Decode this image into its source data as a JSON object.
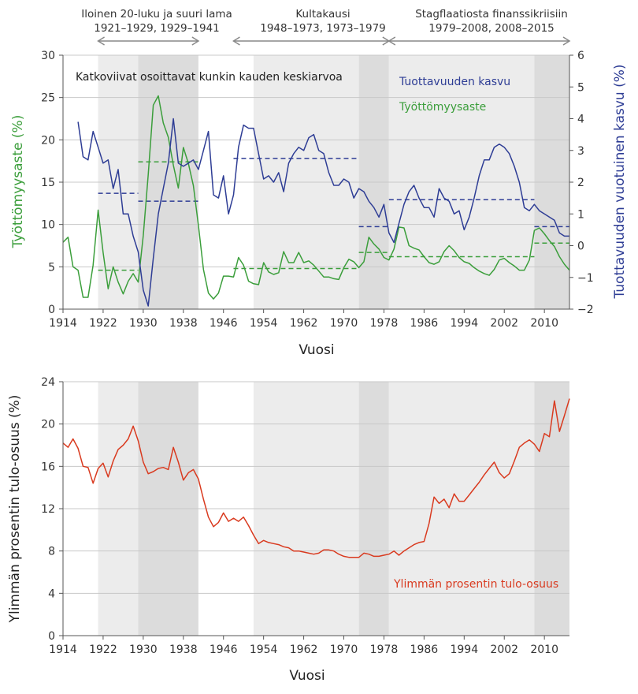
{
  "colors": {
    "unemployment": "#3b9e3b",
    "productivity": "#2e3d95",
    "top_income": "#d93a1f",
    "period_light": "#ececec",
    "period_dark": "#dcdcdc",
    "grid": "#c8c8c8",
    "arrow": "#888888"
  },
  "periods": [
    {
      "title": "Iloinen 20-luku ja suuri lama",
      "years": "1921–1929, 1929–1941",
      "from": 1921,
      "to": 1941,
      "bands": [
        {
          "from": 1921,
          "to": 1929,
          "shade": "light"
        },
        {
          "from": 1929,
          "to": 1941,
          "shade": "dark"
        }
      ]
    },
    {
      "title": "Kultakausi",
      "years": "1948–1973, 1973–1979",
      "from": 1948,
      "to": 1979,
      "bands": [
        {
          "from": 1952,
          "to": 1973,
          "shade": "light"
        },
        {
          "from": 1973,
          "to": 1979,
          "shade": "dark"
        }
      ]
    },
    {
      "title": "Stagflaatiosta finanssikriisiin",
      "years": "1979–2008, 2008–2015",
      "from": 1979,
      "to": 2015,
      "bands": [
        {
          "from": 1979,
          "to": 2008,
          "shade": "light"
        },
        {
          "from": 2008,
          "to": 2015,
          "shade": "dark"
        }
      ]
    }
  ],
  "chart_data": [
    {
      "type": "line",
      "note": "Katkoviivat osoittavat kunkin kauden keskiarvoa",
      "xlabel": "Vuosi",
      "xlim": [
        1914,
        2015
      ],
      "xticks": [
        1914,
        1922,
        1930,
        1938,
        1946,
        1954,
        1962,
        1970,
        1978,
        1986,
        1994,
        2002,
        2010
      ],
      "ylabel_left": "Työttömyysaste (%)",
      "ylim_left": [
        0,
        30
      ],
      "yticks_left": [
        0,
        5,
        10,
        15,
        20,
        25,
        30
      ],
      "ylabel_right": "Tuottavuuden vuotuinen kasvu (%)",
      "ylim_right": [
        -2,
        6
      ],
      "yticks_right": [
        -2,
        -1,
        0,
        1,
        2,
        3,
        4,
        5,
        6
      ],
      "grid": true,
      "series": [
        {
          "name": "Työttömyysaste",
          "axis": "left",
          "color_key": "unemployment",
          "x": [
            1914,
            1915,
            1916,
            1917,
            1918,
            1919,
            1920,
            1921,
            1922,
            1923,
            1924,
            1925,
            1926,
            1927,
            1928,
            1929,
            1930,
            1931,
            1932,
            1933,
            1934,
            1935,
            1936,
            1937,
            1938,
            1939,
            1940,
            1941,
            1942,
            1943,
            1944,
            1945,
            1946,
            1947,
            1948,
            1949,
            1950,
            1951,
            1952,
            1953,
            1954,
            1955,
            1956,
            1957,
            1958,
            1959,
            1960,
            1961,
            1962,
            1963,
            1964,
            1965,
            1966,
            1967,
            1968,
            1969,
            1970,
            1971,
            1972,
            1973,
            1974,
            1975,
            1976,
            1977,
            1978,
            1979,
            1980,
            1981,
            1982,
            1983,
            1984,
            1985,
            1986,
            1987,
            1988,
            1989,
            1990,
            1991,
            1992,
            1993,
            1994,
            1995,
            1996,
            1997,
            1998,
            1999,
            2000,
            2001,
            2002,
            2003,
            2004,
            2005,
            2006,
            2007,
            2008,
            2009,
            2010,
            2011,
            2012,
            2013,
            2014,
            2015
          ],
          "y": [
            7.9,
            8.5,
            5.0,
            4.6,
            1.4,
            1.4,
            5.2,
            11.7,
            6.7,
            2.4,
            5.0,
            3.2,
            1.8,
            3.3,
            4.2,
            3.2,
            8.7,
            15.9,
            24.1,
            25.2,
            22.0,
            20.3,
            17.0,
            14.3,
            19.1,
            17.2,
            14.6,
            9.9,
            4.7,
            1.9,
            1.2,
            1.9,
            3.9,
            3.9,
            3.8,
            6.1,
            5.2,
            3.3,
            3.0,
            2.9,
            5.5,
            4.4,
            4.1,
            4.3,
            6.8,
            5.5,
            5.5,
            6.7,
            5.5,
            5.7,
            5.2,
            4.5,
            3.8,
            3.8,
            3.6,
            3.5,
            4.9,
            5.9,
            5.6,
            4.9,
            5.6,
            8.5,
            7.7,
            7.1,
            6.1,
            5.8,
            7.1,
            9.7,
            9.6,
            7.5,
            7.2,
            7.0,
            6.2,
            5.5,
            5.3,
            5.6,
            6.8,
            7.5,
            6.9,
            6.1,
            5.6,
            5.4,
            4.9,
            4.5,
            4.2,
            4.0,
            4.7,
            5.8,
            6.0,
            5.5,
            5.1,
            4.6,
            4.6,
            5.8,
            9.3,
            9.6,
            8.9,
            8.1,
            7.4,
            6.2,
            5.3,
            4.6
          ]
        },
        {
          "name": "Tuottavuuden kasvu",
          "axis": "right",
          "color_key": "productivity",
          "x": [
            1917,
            1918,
            1919,
            1920,
            1921,
            1922,
            1923,
            1924,
            1925,
            1926,
            1927,
            1928,
            1929,
            1930,
            1931,
            1932,
            1933,
            1934,
            1935,
            1936,
            1937,
            1938,
            1939,
            1940,
            1941,
            1942,
            1943,
            1944,
            1945,
            1946,
            1947,
            1948,
            1949,
            1950,
            1951,
            1952,
            1953,
            1954,
            1955,
            1956,
            1957,
            1958,
            1959,
            1960,
            1961,
            1962,
            1963,
            1964,
            1965,
            1966,
            1967,
            1968,
            1969,
            1970,
            1971,
            1972,
            1973,
            1974,
            1975,
            1976,
            1977,
            1978,
            1979,
            1980,
            1981,
            1982,
            1983,
            1984,
            1985,
            1986,
            1987,
            1988,
            1989,
            1990,
            1991,
            1992,
            1993,
            1994,
            1995,
            1996,
            1997,
            1998,
            1999,
            2000,
            2001,
            2002,
            2003,
            2004,
            2005,
            2006,
            2007,
            2008,
            2009,
            2010,
            2011,
            2012,
            2013,
            2014,
            2015
          ],
          "y": [
            3.9,
            2.8,
            2.7,
            3.6,
            3.1,
            2.6,
            2.7,
            1.8,
            2.4,
            1.0,
            1.0,
            0.3,
            -0.2,
            -1.4,
            -1.9,
            -0.4,
            1.0,
            1.8,
            2.6,
            4.0,
            2.6,
            2.5,
            2.6,
            2.7,
            2.4,
            3.0,
            3.6,
            1.6,
            1.5,
            2.2,
            1.0,
            1.6,
            3.1,
            3.8,
            3.7,
            3.7,
            2.9,
            2.1,
            2.2,
            2.0,
            2.3,
            1.7,
            2.6,
            2.9,
            3.1,
            3.0,
            3.4,
            3.5,
            3.0,
            2.9,
            2.3,
            1.9,
            1.9,
            2.1,
            2.0,
            1.5,
            1.8,
            1.7,
            1.4,
            1.2,
            0.9,
            1.3,
            0.4,
            0.1,
            0.7,
            1.3,
            1.7,
            1.9,
            1.5,
            1.2,
            1.2,
            0.9,
            1.8,
            1.5,
            1.4,
            1.0,
            1.1,
            0.5,
            0.9,
            1.5,
            2.2,
            2.7,
            2.7,
            3.1,
            3.2,
            3.1,
            2.9,
            2.5,
            2.0,
            1.2,
            1.1,
            1.3,
            1.1,
            1.0,
            0.9,
            0.8,
            0.4,
            0.3,
            0.3
          ]
        }
      ],
      "averages": [
        {
          "series": "Tuottavuuden kasvu",
          "from": 1921,
          "to": 1929,
          "value": 1.65
        },
        {
          "series": "Tuottavuuden kasvu",
          "from": 1929,
          "to": 1941,
          "value": 1.4
        },
        {
          "series": "Tuottavuuden kasvu",
          "from": 1948,
          "to": 1973,
          "value": 2.75
        },
        {
          "series": "Tuottavuuden kasvu",
          "from": 1973,
          "to": 1979,
          "value": 0.6
        },
        {
          "series": "Tuottavuuden kasvu",
          "from": 1979,
          "to": 2008,
          "value": 1.45
        },
        {
          "series": "Tuottavuuden kasvu",
          "from": 2008,
          "to": 2015,
          "value": 0.6
        },
        {
          "series": "Työttömyysaste",
          "from": 1921,
          "to": 1929,
          "value": 4.6
        },
        {
          "series": "Työttömyysaste",
          "from": 1929,
          "to": 1941,
          "value": 17.4
        },
        {
          "series": "Työttömyysaste",
          "from": 1948,
          "to": 1973,
          "value": 4.8
        },
        {
          "series": "Työttömyysaste",
          "from": 1973,
          "to": 1979,
          "value": 6.7
        },
        {
          "series": "Työttömyysaste",
          "from": 1979,
          "to": 2008,
          "value": 6.2
        },
        {
          "series": "Työttömyysaste",
          "from": 2008,
          "to": 2015,
          "value": 7.8
        }
      ]
    },
    {
      "type": "line",
      "xlabel": "Vuosi",
      "xlim": [
        1914,
        2015
      ],
      "xticks": [
        1914,
        1922,
        1930,
        1938,
        1946,
        1954,
        1962,
        1970,
        1978,
        1986,
        1994,
        2002,
        2010
      ],
      "ylabel": "Ylimmän prosentin tulo-osuus (%)",
      "ylim": [
        0,
        24
      ],
      "yticks": [
        0,
        4,
        8,
        12,
        16,
        20,
        24
      ],
      "grid": true,
      "series": [
        {
          "name": "Ylimmän prosentin tulo-osuus",
          "color_key": "top_income",
          "x": [
            1914,
            1915,
            1916,
            1917,
            1918,
            1919,
            1920,
            1921,
            1922,
            1923,
            1924,
            1925,
            1926,
            1927,
            1928,
            1929,
            1930,
            1931,
            1932,
            1933,
            1934,
            1935,
            1936,
            1937,
            1938,
            1939,
            1940,
            1941,
            1942,
            1943,
            1944,
            1945,
            1946,
            1947,
            1948,
            1949,
            1950,
            1951,
            1952,
            1953,
            1954,
            1955,
            1956,
            1957,
            1958,
            1959,
            1960,
            1961,
            1962,
            1963,
            1964,
            1965,
            1966,
            1967,
            1968,
            1969,
            1970,
            1971,
            1972,
            1973,
            1974,
            1975,
            1976,
            1977,
            1978,
            1979,
            1980,
            1981,
            1982,
            1983,
            1984,
            1985,
            1986,
            1987,
            1988,
            1989,
            1990,
            1991,
            1992,
            1993,
            1994,
            1995,
            1996,
            1997,
            1998,
            1999,
            2000,
            2001,
            2002,
            2003,
            2004,
            2005,
            2006,
            2007,
            2008,
            2009,
            2010,
            2011,
            2012,
            2013,
            2014,
            2015
          ],
          "y": [
            18.2,
            17.8,
            18.6,
            17.7,
            16.0,
            15.9,
            14.4,
            15.8,
            16.3,
            15.0,
            16.5,
            17.6,
            18.0,
            18.6,
            19.8,
            18.4,
            16.4,
            15.3,
            15.5,
            15.8,
            15.9,
            15.7,
            17.8,
            16.4,
            14.7,
            15.4,
            15.7,
            14.8,
            12.9,
            11.2,
            10.3,
            10.7,
            11.6,
            10.8,
            11.1,
            10.8,
            11.2,
            10.4,
            9.5,
            8.7,
            9.0,
            8.8,
            8.7,
            8.6,
            8.4,
            8.3,
            8.0,
            8.0,
            7.9,
            7.8,
            7.7,
            7.8,
            8.1,
            8.1,
            8.0,
            7.7,
            7.5,
            7.4,
            7.4,
            7.4,
            7.8,
            7.7,
            7.5,
            7.5,
            7.6,
            7.7,
            8.0,
            7.6,
            8.0,
            8.3,
            8.6,
            8.8,
            8.9,
            10.6,
            13.1,
            12.5,
            12.9,
            12.1,
            13.4,
            12.7,
            12.7,
            13.3,
            13.9,
            14.5,
            15.2,
            15.8,
            16.4,
            15.4,
            14.9,
            15.3,
            16.5,
            17.8,
            18.2,
            18.5,
            18.1,
            17.4,
            19.1,
            18.8,
            22.2,
            19.3,
            20.8,
            22.4
          ]
        }
      ]
    }
  ]
}
